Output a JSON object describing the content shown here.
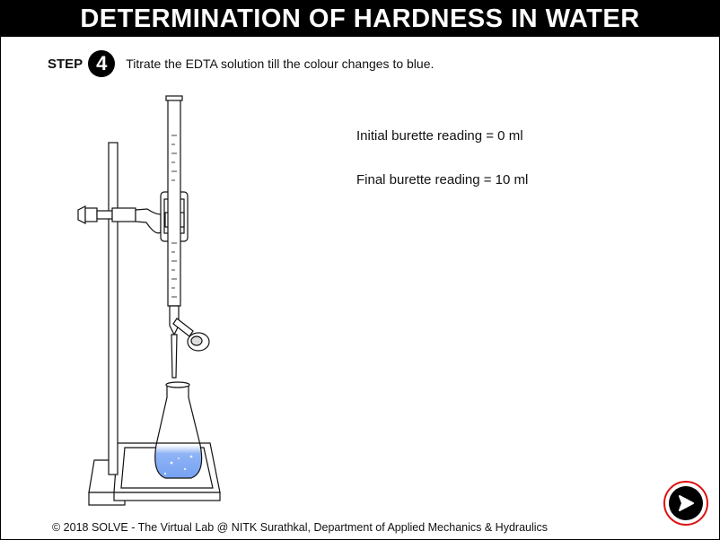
{
  "header": {
    "title": "DETERMINATION OF HARDNESS IN WATER"
  },
  "step": {
    "label": "STEP",
    "number": "4",
    "instruction": "Titrate the EDTA solution till the colour changes to blue."
  },
  "readings": {
    "initial": "Initial burette reading = 0 ml",
    "final": "Final burette reading = 10 ml"
  },
  "footer": {
    "copyright": "© 2018 SOLVE - The Virtual Lab @ NITK Surathkal, Department of Applied Mechanics & Hydraulics"
  },
  "colors": {
    "solution": "#6f9df0",
    "next_ring": "#dd1111"
  },
  "icons": {
    "next": "arrow-right-circle-icon"
  }
}
